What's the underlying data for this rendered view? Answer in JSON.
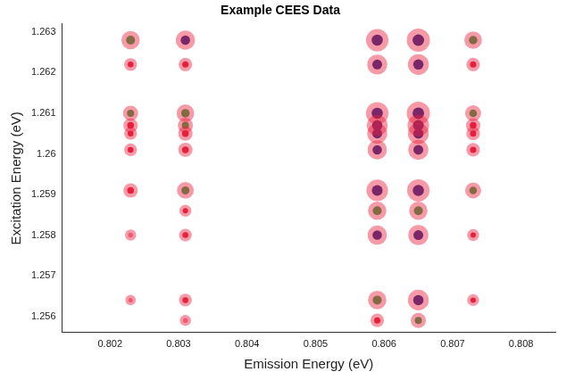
{
  "chart_data": {
    "type": "scatter",
    "title": "Example CEES Data",
    "x_label": "Emission Energy (eV)",
    "y_label": "Excitation Energy (eV)",
    "xlim": [
      0.8013,
      0.8085
    ],
    "ylim": [
      1.2556,
      1.2632
    ],
    "xticks": [
      0.802,
      0.803,
      0.804,
      0.805,
      0.806,
      0.807,
      0.808
    ],
    "yticks": [
      1.256,
      1.257,
      1.258,
      1.259,
      1.26,
      1.261,
      1.262,
      1.263
    ],
    "grid": false,
    "x": [
      0.8023,
      0.8023,
      0.8023,
      0.8023,
      0.8023,
      0.8023,
      0.8023,
      0.8023,
      0.8023,
      0.8031,
      0.8031,
      0.8031,
      0.8031,
      0.8031,
      0.8031,
      0.8031,
      0.8031,
      0.8031,
      0.8031,
      0.8031,
      0.8059,
      0.8059,
      0.8059,
      0.8059,
      0.8059,
      0.8059,
      0.8059,
      0.8059,
      0.8059,
      0.8059,
      0.8059,
      0.8065,
      0.8065,
      0.8065,
      0.8065,
      0.8065,
      0.8065,
      0.8065,
      0.8065,
      0.8065,
      0.8065,
      0.8065,
      0.8073,
      0.8073,
      0.8073,
      0.8073,
      0.8073,
      0.8073,
      0.8073,
      0.8073,
      0.8073
    ],
    "values": [
      1.2628,
      1.2622,
      1.261,
      1.2607,
      1.2605,
      1.2601,
      1.2591,
      1.258,
      1.2564,
      1.2628,
      1.2622,
      1.261,
      1.2607,
      1.2605,
      1.2601,
      1.2591,
      1.2586,
      1.258,
      1.2564,
      1.2559,
      1.2628,
      1.2622,
      1.261,
      1.2607,
      1.2605,
      1.2601,
      1.2591,
      1.2586,
      1.258,
      1.2564,
      1.2559,
      1.2628,
      1.2622,
      1.261,
      1.2607,
      1.2605,
      1.2601,
      1.2591,
      1.2586,
      1.258,
      1.2564,
      1.2559,
      1.2628,
      1.2622,
      1.261,
      1.2607,
      1.2605,
      1.2601,
      1.2591,
      1.258,
      1.2564
    ],
    "intensity": [
      0.7,
      0.35,
      0.5,
      0.45,
      0.35,
      0.35,
      0.45,
      0.25,
      0.2,
      0.75,
      0.4,
      0.65,
      0.5,
      0.45,
      0.45,
      0.6,
      0.3,
      0.35,
      0.35,
      0.25,
      0.95,
      0.8,
      0.95,
      0.85,
      0.8,
      0.75,
      0.9,
      0.7,
      0.75,
      0.7,
      0.4,
      1.0,
      0.85,
      1.0,
      0.9,
      0.85,
      0.8,
      0.95,
      0.7,
      0.8,
      0.85,
      0.5,
      0.65,
      0.4,
      0.55,
      0.45,
      0.4,
      0.4,
      0.55,
      0.3,
      0.3
    ]
  }
}
